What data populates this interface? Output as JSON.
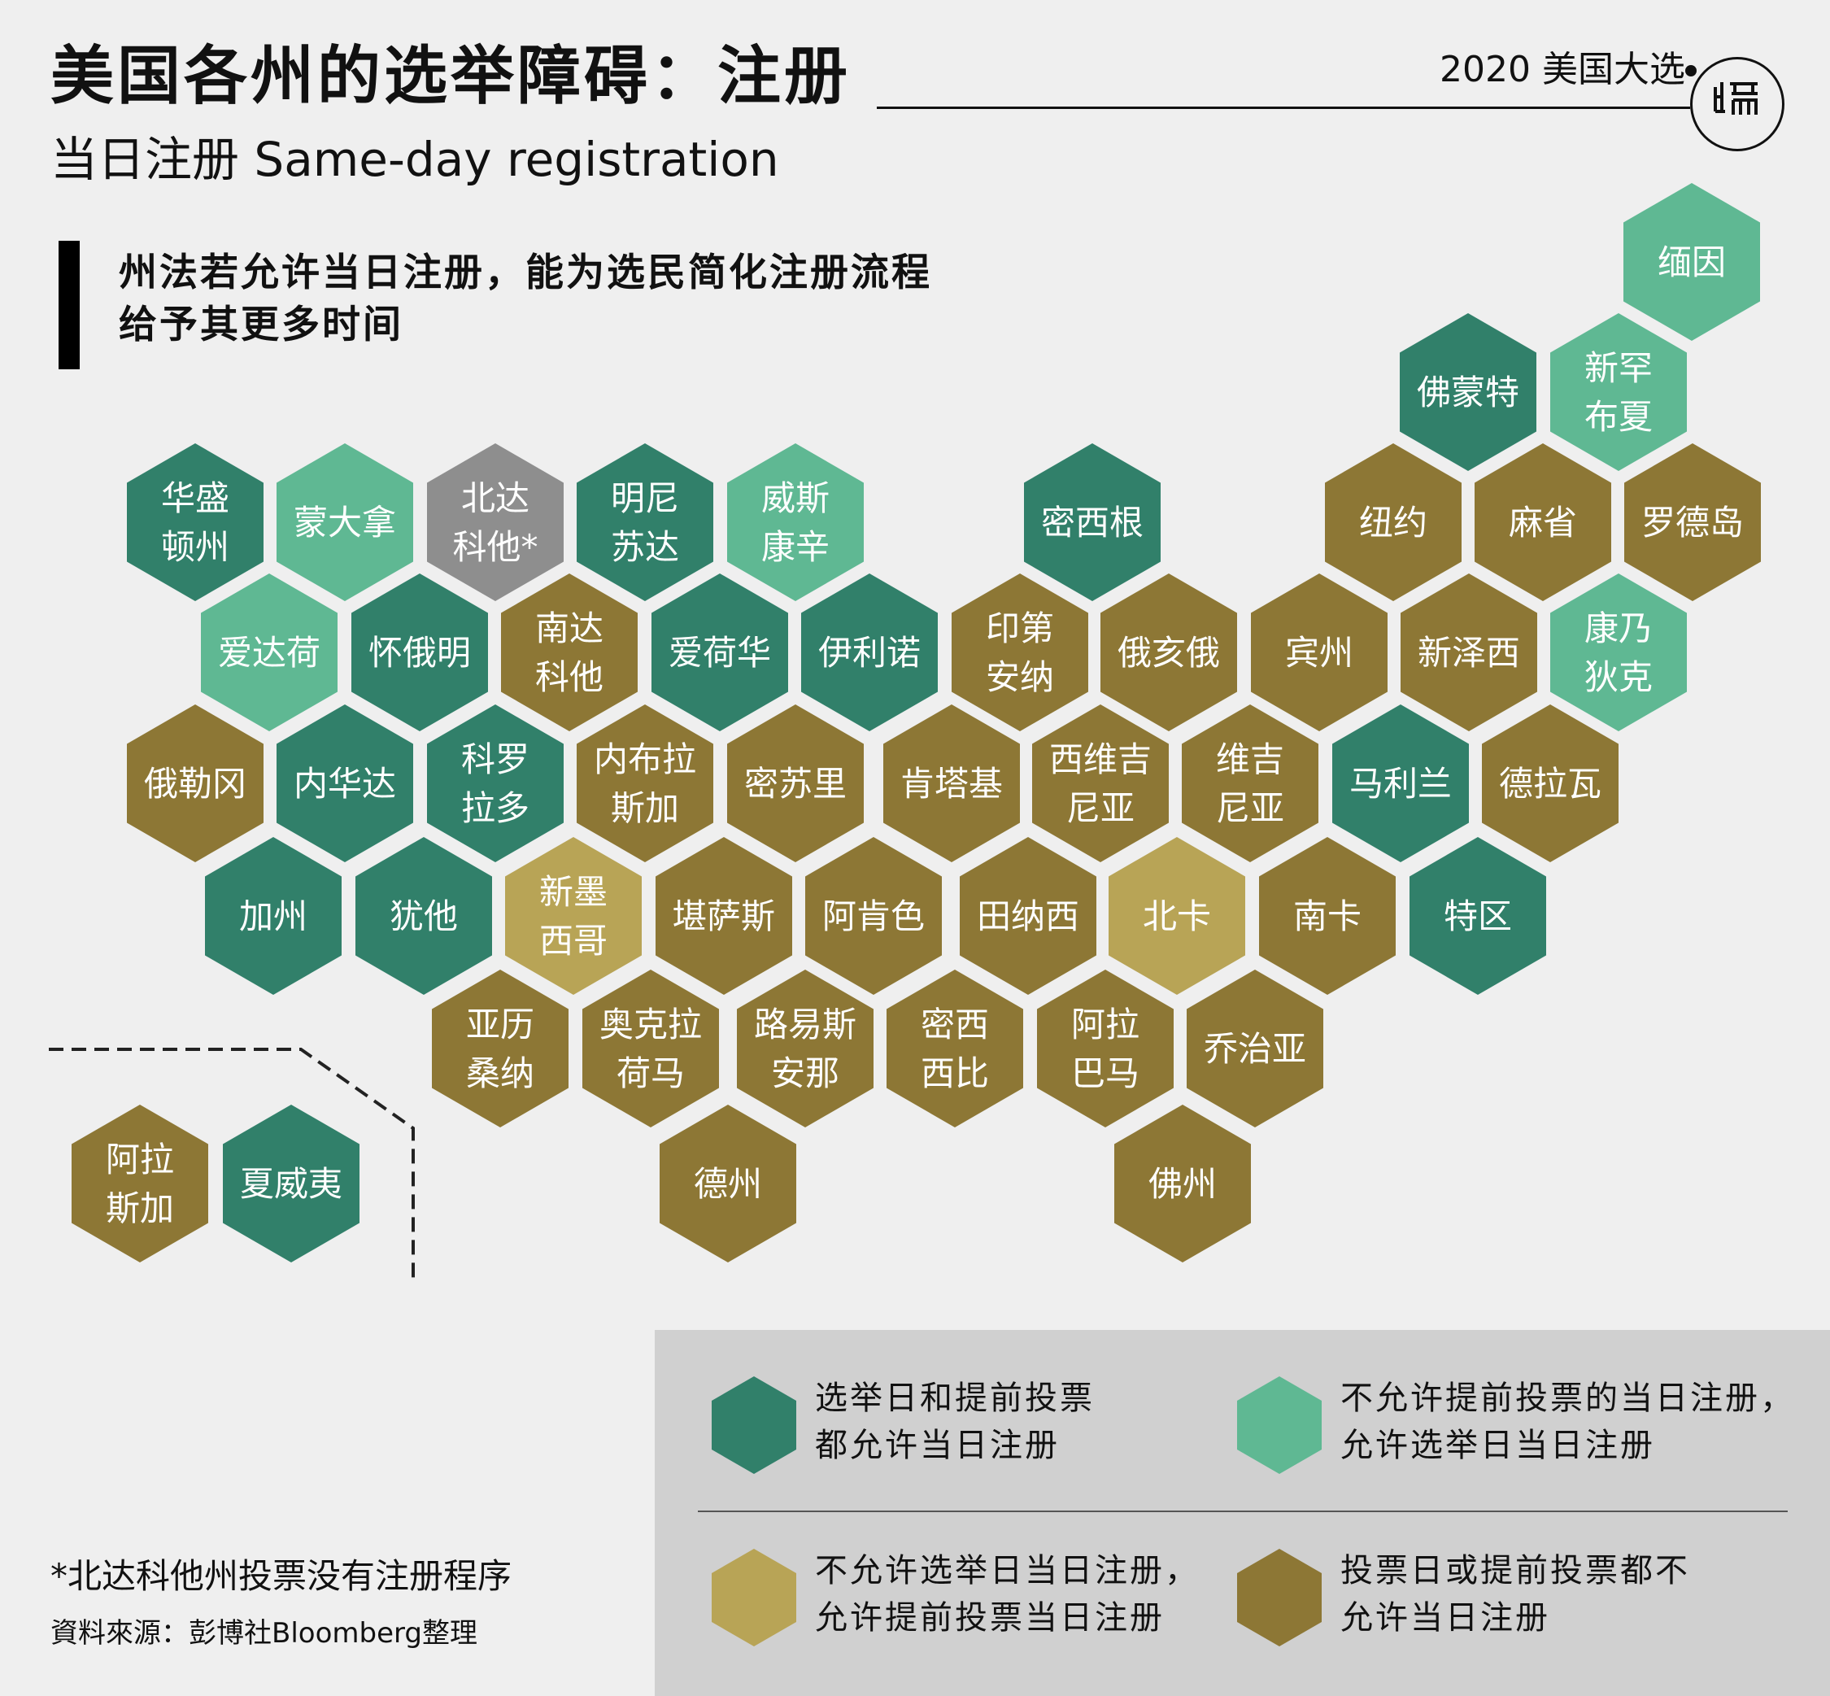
{
  "header": {
    "title": "美国各州的选举障碍：注册",
    "subtitle": "当日注册 Same-day registration",
    "series_label": "2020 美国大选",
    "logo_text": "端"
  },
  "intro": {
    "line1": "州法若允许当日注册，能为选民简化注册流程",
    "line2": "给予其更多时间"
  },
  "colors": {
    "both": "#31806a",
    "election_day_only": "#5fb893",
    "early_only": "#b8a456",
    "neither": "#8d7735",
    "no_registration": "#8e8e8e"
  },
  "legend": [
    {
      "category": "both",
      "line1": "选举日和提前投票",
      "line2": "都允许当日注册"
    },
    {
      "category": "election_day_only",
      "line1": "不允许提前投票的当日注册，",
      "line2": "允许选举日当日注册"
    },
    {
      "category": "early_only",
      "line1": "不允许选举日当日注册，",
      "line2": "允许提前投票当日注册"
    },
    {
      "category": "neither",
      "line1": "投票日或提前投票都不",
      "line2": "允许当日注册"
    }
  ],
  "states": [
    {
      "name": "缅因",
      "lines": [
        "缅因"
      ],
      "category": "election_day_only"
    },
    {
      "name": "佛蒙特",
      "lines": [
        "佛蒙特"
      ],
      "category": "both"
    },
    {
      "name": "新罕布夏",
      "lines": [
        "新罕",
        "布夏"
      ],
      "category": "election_day_only"
    },
    {
      "name": "华盛顿州",
      "lines": [
        "华盛",
        "顿州"
      ],
      "category": "both"
    },
    {
      "name": "蒙大拿",
      "lines": [
        "蒙大拿"
      ],
      "category": "election_day_only"
    },
    {
      "name": "北达科他",
      "lines": [
        "北达",
        "科他*"
      ],
      "category": "no_registration"
    },
    {
      "name": "明尼苏达",
      "lines": [
        "明尼",
        "苏达"
      ],
      "category": "both"
    },
    {
      "name": "威斯康辛",
      "lines": [
        "威斯",
        "康辛"
      ],
      "category": "election_day_only"
    },
    {
      "name": "密西根",
      "lines": [
        "密西根"
      ],
      "category": "both"
    },
    {
      "name": "纽约",
      "lines": [
        "纽约"
      ],
      "category": "neither"
    },
    {
      "name": "麻省",
      "lines": [
        "麻省"
      ],
      "category": "neither"
    },
    {
      "name": "罗德岛",
      "lines": [
        "罗德岛"
      ],
      "category": "neither"
    },
    {
      "name": "爱达荷",
      "lines": [
        "爱达荷"
      ],
      "category": "election_day_only"
    },
    {
      "name": "怀俄明",
      "lines": [
        "怀俄明"
      ],
      "category": "both"
    },
    {
      "name": "南达科他",
      "lines": [
        "南达",
        "科他"
      ],
      "category": "neither"
    },
    {
      "name": "爱荷华",
      "lines": [
        "爱荷华"
      ],
      "category": "both"
    },
    {
      "name": "伊利诺",
      "lines": [
        "伊利诺"
      ],
      "category": "both"
    },
    {
      "name": "印第安纳",
      "lines": [
        "印第",
        "安纳"
      ],
      "category": "neither"
    },
    {
      "name": "俄亥俄",
      "lines": [
        "俄亥俄"
      ],
      "category": "neither"
    },
    {
      "name": "宾州",
      "lines": [
        "宾州"
      ],
      "category": "neither"
    },
    {
      "name": "新泽西",
      "lines": [
        "新泽西"
      ],
      "category": "neither"
    },
    {
      "name": "康乃狄克",
      "lines": [
        "康乃",
        "狄克"
      ],
      "category": "election_day_only"
    },
    {
      "name": "俄勒冈",
      "lines": [
        "俄勒冈"
      ],
      "category": "neither"
    },
    {
      "name": "内华达",
      "lines": [
        "内华达"
      ],
      "category": "both"
    },
    {
      "name": "科罗拉多",
      "lines": [
        "科罗",
        "拉多"
      ],
      "category": "both"
    },
    {
      "name": "内布拉斯加",
      "lines": [
        "内布拉",
        "斯加"
      ],
      "category": "neither"
    },
    {
      "name": "密苏里",
      "lines": [
        "密苏里"
      ],
      "category": "neither"
    },
    {
      "name": "肯塔基",
      "lines": [
        "肯塔基"
      ],
      "category": "neither"
    },
    {
      "name": "西维吉尼亚",
      "lines": [
        "西维吉",
        "尼亚"
      ],
      "category": "neither"
    },
    {
      "name": "维吉尼亚",
      "lines": [
        "维吉",
        "尼亚"
      ],
      "category": "neither"
    },
    {
      "name": "马利兰",
      "lines": [
        "马利兰"
      ],
      "category": "both"
    },
    {
      "name": "德拉瓦",
      "lines": [
        "德拉瓦"
      ],
      "category": "neither"
    },
    {
      "name": "加州",
      "lines": [
        "加州"
      ],
      "category": "both"
    },
    {
      "name": "犹他",
      "lines": [
        "犹他"
      ],
      "category": "both"
    },
    {
      "name": "新墨西哥",
      "lines": [
        "新墨",
        "西哥"
      ],
      "category": "early_only"
    },
    {
      "name": "堪萨斯",
      "lines": [
        "堪萨斯"
      ],
      "category": "neither"
    },
    {
      "name": "阿肯色",
      "lines": [
        "阿肯色"
      ],
      "category": "neither"
    },
    {
      "name": "田纳西",
      "lines": [
        "田纳西"
      ],
      "category": "neither"
    },
    {
      "name": "北卡",
      "lines": [
        "北卡"
      ],
      "category": "early_only"
    },
    {
      "name": "南卡",
      "lines": [
        "南卡"
      ],
      "category": "neither"
    },
    {
      "name": "特区",
      "lines": [
        "特区"
      ],
      "category": "both"
    },
    {
      "name": "亚历桑纳",
      "lines": [
        "亚历",
        "桑纳"
      ],
      "category": "neither"
    },
    {
      "name": "奥克拉荷马",
      "lines": [
        "奥克拉",
        "荷马"
      ],
      "category": "neither"
    },
    {
      "name": "路易斯安那",
      "lines": [
        "路易斯",
        "安那"
      ],
      "category": "neither"
    },
    {
      "name": "密西西比",
      "lines": [
        "密西",
        "西比"
      ],
      "category": "neither"
    },
    {
      "name": "阿拉巴马",
      "lines": [
        "阿拉",
        "巴马"
      ],
      "category": "neither"
    },
    {
      "name": "乔治亚",
      "lines": [
        "乔治亚"
      ],
      "category": "neither"
    },
    {
      "name": "阿拉斯加",
      "lines": [
        "阿拉",
        "斯加"
      ],
      "category": "neither"
    },
    {
      "name": "夏威夷",
      "lines": [
        "夏威夷"
      ],
      "category": "both"
    },
    {
      "name": "德州",
      "lines": [
        "德州"
      ],
      "category": "neither"
    },
    {
      "name": "佛州",
      "lines": [
        "佛州"
      ],
      "category": "neither"
    }
  ],
  "footer": {
    "footnote": "*北达科他州投票没有注册程序",
    "source": "資料來源：彭博社Bloomberg整理"
  }
}
